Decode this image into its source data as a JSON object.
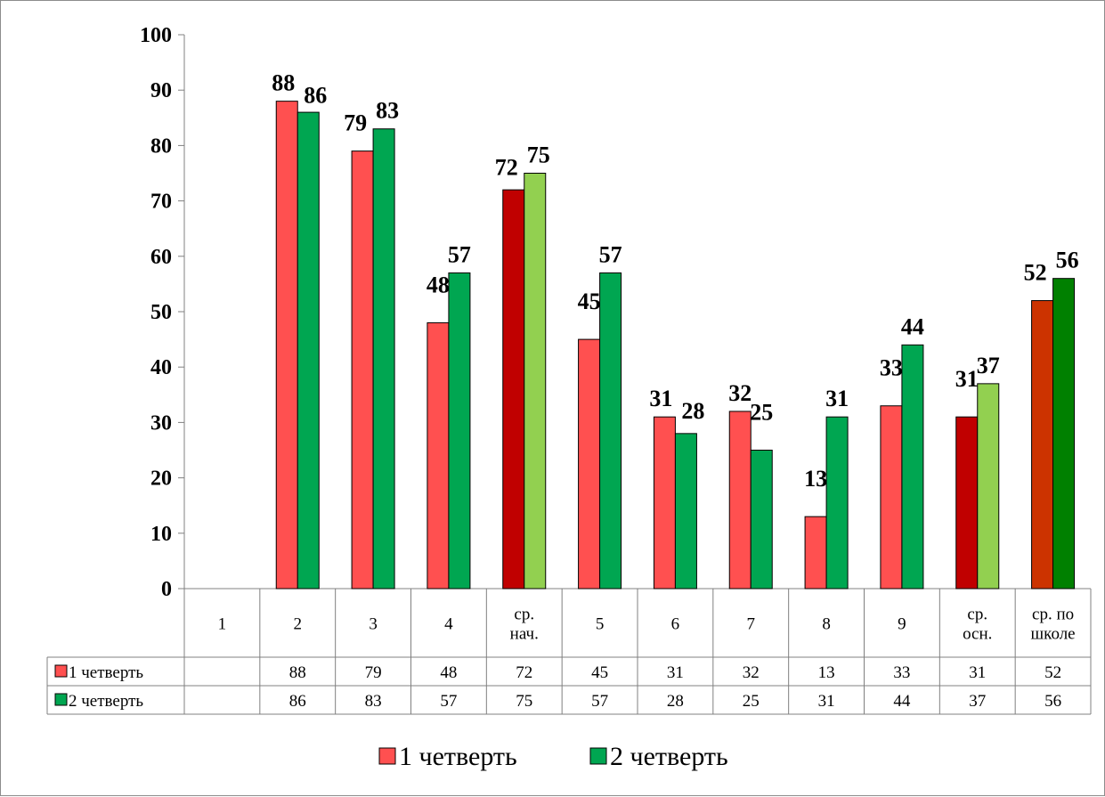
{
  "chart_data": {
    "type": "bar",
    "categories": [
      "1",
      "2",
      "3",
      "4",
      "ср. нач.",
      "5",
      "6",
      "7",
      "8",
      "9",
      "ср. осн.",
      "ср. по школе"
    ],
    "category_lines": [
      [
        "1"
      ],
      [
        "2"
      ],
      [
        "3"
      ],
      [
        "4"
      ],
      [
        "ср.",
        "нач."
      ],
      [
        "5"
      ],
      [
        "6"
      ],
      [
        "7"
      ],
      [
        "8"
      ],
      [
        "9"
      ],
      [
        "ср.",
        "осн."
      ],
      [
        "ср. по",
        "школе"
      ]
    ],
    "series": [
      {
        "name": "1 четверть",
        "values": [
          null,
          88,
          79,
          48,
          72,
          45,
          31,
          32,
          13,
          33,
          31,
          52
        ],
        "color": "#ff5050",
        "highlight_colors": {
          "4": "#c00000",
          "10": "#c00000",
          "11": "#cc3300"
        }
      },
      {
        "name": "2 четверть",
        "values": [
          null,
          86,
          83,
          57,
          75,
          57,
          28,
          25,
          31,
          44,
          37,
          56
        ],
        "color": "#00a651",
        "highlight_colors": {
          "4": "#92d050",
          "10": "#92d050",
          "11": "#008000"
        }
      }
    ],
    "ylim": [
      0,
      100
    ],
    "yticks": [
      0,
      10,
      20,
      30,
      40,
      50,
      60,
      70,
      80,
      90,
      100
    ],
    "data_table": true,
    "legend": "bottom",
    "grid": false
  }
}
